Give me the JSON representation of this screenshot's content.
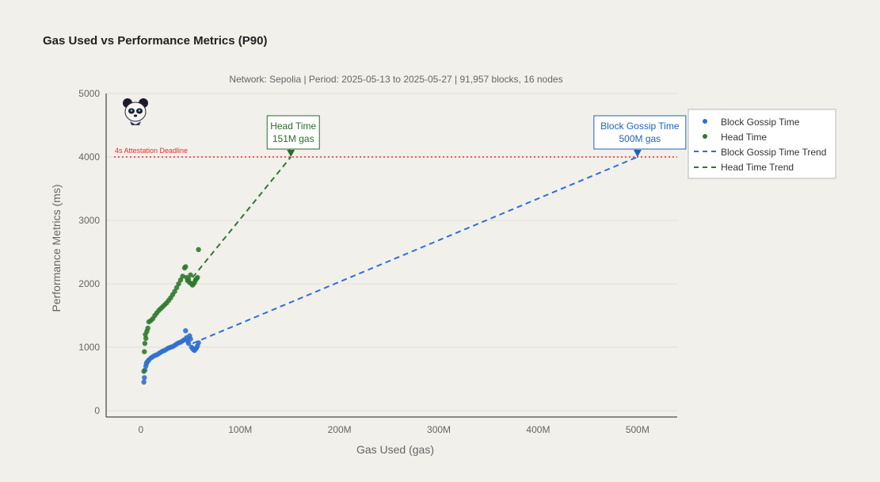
{
  "page": {
    "title": "Gas Used vs Performance Metrics (P90)",
    "subtitle": "Network: Sepolia | Period: 2025-05-13 to 2025-05-27 | 91,957 blocks, 16 nodes"
  },
  "colors": {
    "background": "#f2f0eb",
    "block_gossip": "#2f6fd0",
    "head_time": "#2d7a2d",
    "deadline": "#e03030",
    "head_box_border": "#2d6a2d",
    "gossip_box_border": "#1f63b8"
  },
  "logo": {
    "icon": "panda-icon"
  },
  "chart_data": {
    "type": "scatter",
    "title": "Gas Used vs Performance Metrics (P90)",
    "xlabel": "Gas Used (gas)",
    "ylabel": "Performance Metrics (ms)",
    "xlim": [
      -35000000,
      540000000
    ],
    "ylim": [
      -100,
      5000
    ],
    "x_ticks": [
      0,
      100000000,
      200000000,
      300000000,
      400000000,
      500000000
    ],
    "x_tick_labels": [
      "0",
      "100M",
      "200M",
      "300M",
      "400M",
      "500M"
    ],
    "y_ticks": [
      0,
      1000,
      2000,
      3000,
      4000,
      5000
    ],
    "y_tick_labels": [
      "0",
      "1000",
      "2000",
      "3000",
      "4000",
      "5000"
    ],
    "grid": true,
    "legend_position": "right",
    "series": [
      {
        "name": "Block Gossip Time",
        "kind": "markers",
        "color": "#2f6fd0",
        "x": [
          3000000,
          3500000,
          4000000,
          5000000,
          5500000,
          6000000,
          7000000,
          8000000,
          10000000,
          12000000,
          14000000,
          16000000,
          18000000,
          20000000,
          22000000,
          24000000,
          26000000,
          28000000,
          30000000,
          32000000,
          34000000,
          36000000,
          38000000,
          40000000,
          42000000,
          44000000,
          45000000,
          46000000,
          47000000,
          48000000,
          49000000,
          50000000,
          51000000,
          52000000,
          53000000,
          54000000,
          55000000,
          56000000,
          57000000,
          58000000
        ],
        "y": [
          450,
          520,
          640,
          700,
          740,
          760,
          780,
          800,
          830,
          850,
          870,
          880,
          900,
          920,
          940,
          950,
          970,
          990,
          1000,
          1010,
          1030,
          1050,
          1070,
          1080,
          1100,
          1120,
          1260,
          1150,
          1100,
          1060,
          1180,
          1130,
          1000,
          980,
          960,
          950,
          970,
          990,
          1020,
          1070
        ]
      },
      {
        "name": "Head Time",
        "kind": "markers",
        "color": "#2d7a2d",
        "x": [
          3000000,
          3500000,
          4000000,
          4500000,
          5000000,
          6000000,
          7000000,
          8000000,
          10000000,
          12000000,
          14000000,
          16000000,
          18000000,
          20000000,
          22000000,
          24000000,
          26000000,
          28000000,
          30000000,
          32000000,
          34000000,
          36000000,
          38000000,
          40000000,
          42000000,
          44000000,
          45000000,
          46000000,
          47000000,
          48000000,
          49000000,
          50000000,
          51000000,
          52000000,
          53000000,
          54000000,
          55000000,
          56000000,
          57000000,
          58000000
        ],
        "y": [
          620,
          930,
          1060,
          1200,
          1140,
          1250,
          1300,
          1400,
          1420,
          1450,
          1500,
          1540,
          1580,
          1610,
          1640,
          1670,
          1700,
          1740,
          1780,
          1830,
          1880,
          1940,
          2000,
          2060,
          2120,
          2250,
          2270,
          2100,
          2050,
          2070,
          2020,
          2140,
          2000,
          1980,
          2000,
          2020,
          2060,
          2080,
          2100,
          2540
        ]
      },
      {
        "name": "Block Gossip Time Trend",
        "kind": "dashed-line",
        "color": "#2f6fd0",
        "x": [
          52000000,
          500000000
        ],
        "y": [
          1060,
          4000
        ]
      },
      {
        "name": "Head Time Trend",
        "kind": "dashed-line",
        "color": "#2d7a2d",
        "x": [
          52000000,
          151000000
        ],
        "y": [
          2100,
          4000
        ]
      }
    ],
    "deadline": {
      "y": 4000,
      "label": "4s Attestation Deadline",
      "color": "#e03030"
    },
    "annotations": [
      {
        "line1": "Head Time",
        "line2": "151M gas",
        "x": 151000000,
        "y": 4000,
        "color": "#2d6a2d"
      },
      {
        "line1": "Block Gossip Time",
        "line2": "500M gas",
        "x": 500000000,
        "y": 4000,
        "color": "#1f63b8"
      }
    ]
  }
}
